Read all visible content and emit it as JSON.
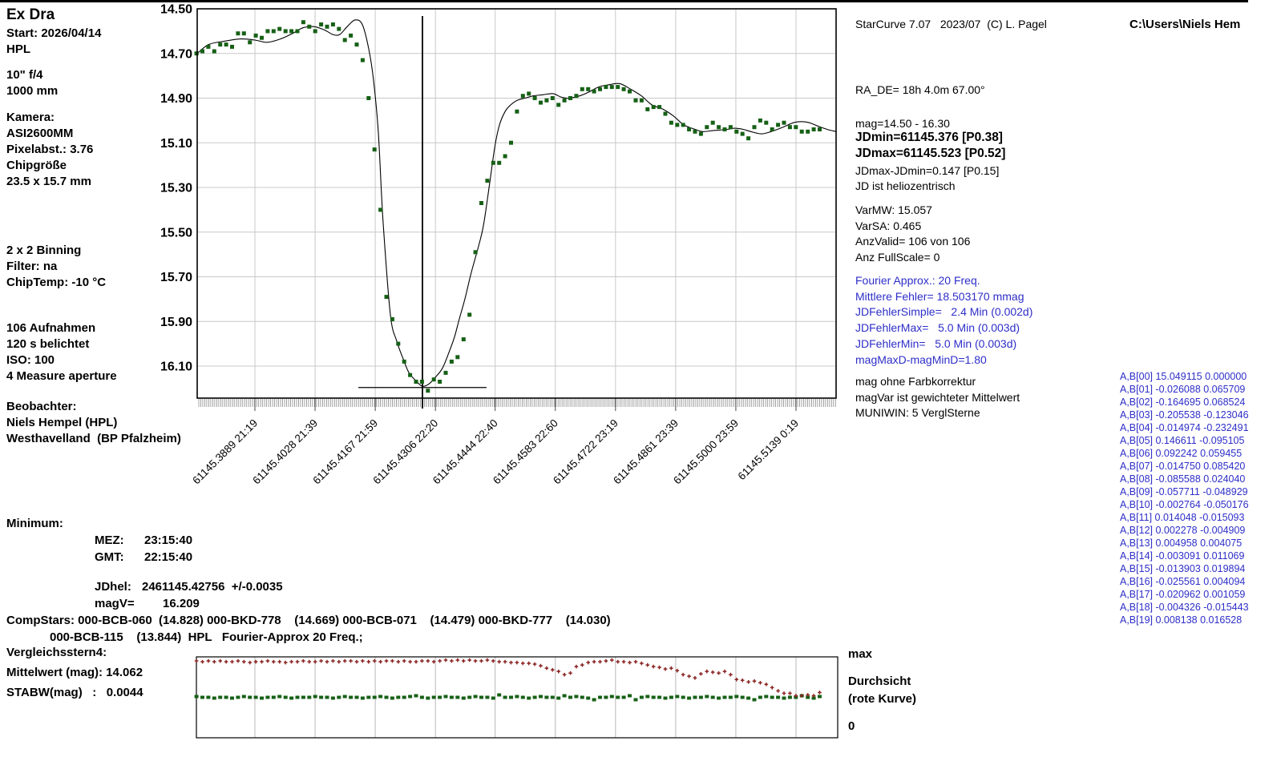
{
  "header": {
    "top_right_path": "C:\\Users\\Niels Hem"
  },
  "software": {
    "credit": "StarCurve 7.07   2023/07  (C) L. Pagel"
  },
  "info_panel": {
    "title": "Ex Dra",
    "start": "Start: 2026/04/14",
    "observer_code": "HPL",
    "scope": "10\" f/4",
    "focal": "1000 mm",
    "camera_label": "Kamera:",
    "camera": "ASI2600MM",
    "pixel": "Pixelabst.: 3.76",
    "chip_label": "Chipgröße",
    "chip_size": "23.5 x 15.7 mm",
    "binning": "2 x 2 Binning",
    "filter": "Filter: na",
    "chiptemp": "ChipTemp: -10 °C",
    "frames": "106 Aufnahmen",
    "exposure": "120 s belichtet",
    "iso": "ISO: 100",
    "aperture": "4 Measure aperture",
    "observer_label": "Beobachter:",
    "observer": "Niels Hempel (HPL)",
    "site": "Westhavelland  (BP Pfalzheim)"
  },
  "results": {
    "ra_de": "RA_DE= 18h 4.0m 67.00°",
    "mag_range": "mag=14.50 - 16.30",
    "jdmin": "JDmin=61145.376 [P0.38]",
    "jdmax": "JDmax=61145.523 [P0.52]",
    "jd_diff": "JDmax-JDmin=0.147 [P0.15]",
    "helio": "JD ist heliozentrisch",
    "var_lines": [
      "VarMW: 15.057",
      "VarSA: 0.465",
      "AnzValid= 106 von 106",
      "Anz FullScale= 0"
    ]
  },
  "fourier": {
    "lines": [
      "Fourier Approx.: 20 Freq.",
      "Mittlere Fehler= 18.503170 mmag",
      "JDFehlerSimple=   2.4 Min (0.002d)",
      "JDFehlerMax=   5.0 Min (0.003d)",
      "JDFehlerMin=   5.0 Min (0.003d)",
      "magMaxD-magMinD=1.80"
    ]
  },
  "notes": {
    "lines": [
      "mag ohne Farbkorrektur",
      "magVar ist gewichteter Mittelwert",
      "MUNIWIN: 5 VerglSterne"
    ]
  },
  "coefficients": [
    "A,B[00] 15.049115 0.000000",
    "A,B[01] -0.026088 0.065709",
    "A,B[02] -0.164695 0.068524",
    "A,B[03] -0.205538 -0.123046",
    "A,B[04] -0.014974 -0.232491",
    "A,B[05] 0.146611 -0.095105",
    "A,B[06] 0.092242 0.059455",
    "A,B[07] -0.014750 0.085420",
    "A,B[08] -0.085588 0.024040",
    "A,B[09] -0.057711 -0.048929",
    "A,B[10] -0.002764 -0.050176",
    "A,B[11] 0.014048 -0.015093",
    "A,B[12] 0.002278 -0.004909",
    "A,B[13] 0.004958 0.004075",
    "A,B[14] -0.003091 0.011069",
    "A,B[15] -0.013903 0.019894",
    "A,B[16] -0.025561 0.004094",
    "A,B[17] -0.020962 0.001059",
    "A,B[18] -0.004326 -0.015443",
    "A,B[19] 0.008138 0.016528"
  ],
  "minimum": {
    "label": "Minimum:",
    "mez_label": "MEZ:",
    "mez": "23:15:40",
    "gmt_label": "GMT:",
    "gmt": "22:15:40",
    "jdhel_label": "JDhel:",
    "jdhel": "2461145.42756  +/-0.0035",
    "magv_label": "magV=",
    "magv": "16.209",
    "compstars_line1": "CompStars: 000-BCB-060  (14.828) 000-BKD-778    (14.669) 000-BCB-071    (14.479) 000-BKD-777    (14.030)",
    "compstars_line2": "000-BCB-115    (13.844)  HPL   Fourier-Approx 20 Freq.;"
  },
  "comparison": {
    "title": "Vergleichsstern4:",
    "mean": "Mittelwert (mag): 14.062",
    "stdev": "STABW(mag)   :   0.0044"
  },
  "strip_labels": {
    "max": "max",
    "durchsicht": "Durchsicht",
    "rote_kurve": "(rote Kurve)",
    "zero": "0"
  },
  "colors": {
    "data_green": "#166016",
    "data_red": "#8b2424",
    "accent_blue": "#2e2ec8",
    "grid": "#c8c8c8",
    "strip_grid": "#b8b8b8"
  },
  "chart_data": [
    {
      "type": "scatter",
      "name": "Ex Dra light curve",
      "ylabel": "mag",
      "y_ticks": [
        "14.50",
        "14.70",
        "14.90",
        "15.10",
        "15.30",
        "15.50",
        "15.70",
        "15.90",
        "16.10"
      ],
      "ylim": [
        14.5,
        16.24
      ],
      "xlim_jd": [
        61145.3756,
        61145.5232
      ],
      "grid": true,
      "x_ticks": [
        {
          "jd": 61145.3889,
          "label": "61145.3889",
          "time": "21:19"
        },
        {
          "jd": 61145.4028,
          "label": "61145.4028",
          "time": "21:39"
        },
        {
          "jd": 61145.4167,
          "label": "61145.4167",
          "time": "21:59"
        },
        {
          "jd": 61145.4306,
          "label": "61145.4306",
          "time": "22:20"
        },
        {
          "jd": 61145.4444,
          "label": "61145.4444",
          "time": "22:40"
        },
        {
          "jd": 61145.4583,
          "label": "61145.4583",
          "time": "22:60"
        },
        {
          "jd": 61145.4722,
          "label": "61145.4722",
          "time": "23:19"
        },
        {
          "jd": 61145.4861,
          "label": "61145.4861",
          "time": "23:39"
        },
        {
          "jd": 61145.5,
          "label": "61145.5000",
          "time": "23:59"
        },
        {
          "jd": 61145.5139,
          "label": "61145.5139",
          "time": "0:19"
        }
      ],
      "points": {
        "jd_start": 61145.3754,
        "jd_step": 0.001371,
        "mags": [
          14.7,
          14.69,
          14.67,
          14.69,
          14.66,
          14.66,
          14.67,
          14.61,
          14.61,
          14.65,
          14.62,
          14.63,
          14.6,
          14.6,
          14.59,
          14.6,
          14.6,
          14.6,
          14.56,
          14.58,
          14.6,
          14.57,
          14.58,
          14.57,
          14.59,
          14.64,
          14.62,
          14.66,
          14.73,
          14.9,
          15.13,
          15.4,
          15.79,
          15.89,
          16.0,
          16.08,
          16.14,
          16.17,
          16.17,
          16.21,
          16.16,
          16.17,
          16.13,
          16.08,
          16.06,
          15.98,
          15.87,
          15.59,
          15.37,
          15.27,
          15.19,
          15.19,
          15.16,
          15.1,
          14.96,
          14.89,
          14.88,
          14.9,
          14.92,
          14.91,
          14.9,
          14.93,
          14.91,
          14.9,
          14.89,
          14.86,
          14.86,
          14.87,
          14.86,
          14.85,
          14.85,
          14.85,
          14.86,
          14.87,
          14.91,
          14.91,
          14.95,
          14.94,
          14.94,
          14.97,
          15.01,
          15.02,
          15.02,
          15.04,
          15.05,
          15.06,
          15.03,
          15.01,
          15.03,
          15.04,
          15.03,
          15.05,
          15.06,
          15.08,
          15.03,
          15.0,
          15.01,
          15.04,
          15.02,
          15.01,
          15.03,
          15.03,
          15.05,
          15.05,
          15.04,
          15.04
        ]
      },
      "fit": {
        "name": "Fourier-Approx 20 Freq.",
        "points": [
          [
            61145.3756,
            14.7
          ],
          [
            61145.3782,
            14.66
          ],
          [
            61145.3819,
            14.645
          ],
          [
            61145.3856,
            14.635
          ],
          [
            61145.3889,
            14.64
          ],
          [
            61145.3917,
            14.65
          ],
          [
            61145.3948,
            14.635
          ],
          [
            61145.3976,
            14.61
          ],
          [
            61145.4,
            14.585
          ],
          [
            61145.4026,
            14.58
          ],
          [
            61145.405,
            14.595
          ],
          [
            61145.4069,
            14.615
          ],
          [
            61145.4085,
            14.615
          ],
          [
            61145.4102,
            14.58
          ],
          [
            61145.412,
            14.55
          ],
          [
            61145.4137,
            14.57
          ],
          [
            61145.4152,
            14.68
          ],
          [
            61145.4163,
            14.82
          ],
          [
            61145.4174,
            15.05
          ],
          [
            61145.4185,
            15.45
          ],
          [
            61145.4202,
            15.87
          ],
          [
            61145.4217,
            15.99
          ],
          [
            61145.4232,
            16.07
          ],
          [
            61145.4245,
            16.13
          ],
          [
            61145.4263,
            16.17
          ],
          [
            61145.4276,
            16.19
          ],
          [
            61145.4291,
            16.18
          ],
          [
            61145.4306,
            16.15
          ],
          [
            61145.4322,
            16.11
          ],
          [
            61145.4337,
            16.04
          ],
          [
            61145.435,
            15.97
          ],
          [
            61145.4361,
            15.89
          ],
          [
            61145.4374,
            15.8
          ],
          [
            61145.4389,
            15.68
          ],
          [
            61145.4406,
            15.56
          ],
          [
            61145.4417,
            15.47
          ],
          [
            61145.443,
            15.3
          ],
          [
            61145.4443,
            15.12
          ],
          [
            61145.4454,
            15.02
          ],
          [
            61145.4467,
            14.96
          ],
          [
            61145.448,
            14.93
          ],
          [
            61145.4495,
            14.91
          ],
          [
            61145.4513,
            14.9
          ],
          [
            61145.4532,
            14.89
          ],
          [
            61145.4554,
            14.885
          ],
          [
            61145.4578,
            14.88
          ],
          [
            61145.4596,
            14.895
          ],
          [
            61145.4615,
            14.9
          ],
          [
            61145.4639,
            14.89
          ],
          [
            61145.4658,
            14.875
          ],
          [
            61145.4683,
            14.85
          ],
          [
            61145.4707,
            14.84
          ],
          [
            61145.4732,
            14.835
          ],
          [
            61145.4757,
            14.86
          ],
          [
            61145.4782,
            14.89
          ],
          [
            61145.4806,
            14.93
          ],
          [
            61145.4832,
            14.95
          ],
          [
            61145.4856,
            14.98
          ],
          [
            61145.488,
            15.02
          ],
          [
            61145.4906,
            15.04
          ],
          [
            61145.4924,
            15.05
          ],
          [
            61145.4948,
            15.045
          ],
          [
            61145.498,
            15.04
          ],
          [
            61145.4998,
            15.035
          ],
          [
            61145.5017,
            15.04
          ],
          [
            61145.5035,
            15.05
          ],
          [
            61145.5059,
            15.06
          ],
          [
            61145.5081,
            15.05
          ],
          [
            61145.5109,
            15.03
          ],
          [
            61145.5133,
            15.01
          ],
          [
            61145.5152,
            15.005
          ],
          [
            61145.517,
            15.01
          ],
          [
            61145.5189,
            15.025
          ],
          [
            61145.5211,
            15.04
          ],
          [
            61145.5232,
            15.05
          ]
        ]
      },
      "minimum_marker": {
        "jd": 61145.4276,
        "hline_mag": 16.196,
        "hline_from_jd": 61145.4128,
        "hline_to_jd": 61145.4424
      }
    },
    {
      "type": "scatter",
      "name": "Durchsicht / Vergleichsstern4",
      "ylim_labels": [
        "0",
        "max"
      ],
      "red_series_name": "Durchsicht (rote Kurve)",
      "green_series_name": "Vergleichsstern4",
      "red_frac": [
        0.95,
        0.94,
        0.95,
        0.94,
        0.95,
        0.94,
        0.94,
        0.95,
        0.94,
        0.93,
        0.94,
        0.94,
        0.95,
        0.94,
        0.94,
        0.93,
        0.94,
        0.94,
        0.95,
        0.94,
        0.94,
        0.95,
        0.94,
        0.95,
        0.94,
        0.95,
        0.95,
        0.94,
        0.95,
        0.94,
        0.95,
        0.94,
        0.95,
        0.95,
        0.94,
        0.95,
        0.94,
        0.94,
        0.95,
        0.95,
        0.94,
        0.95,
        0.96,
        0.95,
        0.96,
        0.95,
        0.96,
        0.95,
        0.95,
        0.96,
        0.95,
        0.94,
        0.94,
        0.93,
        0.93,
        0.92,
        0.92,
        0.91,
        0.89,
        0.86,
        0.84,
        0.82,
        0.78,
        0.8,
        0.88,
        0.9,
        0.93,
        0.94,
        0.94,
        0.95,
        0.96,
        0.94,
        0.94,
        0.93,
        0.94,
        0.92,
        0.9,
        0.88,
        0.87,
        0.85,
        0.86,
        0.83,
        0.78,
        0.76,
        0.74,
        0.79,
        0.82,
        0.81,
        0.8,
        0.82,
        0.78,
        0.72,
        0.71,
        0.69,
        0.7,
        0.68,
        0.66,
        0.62,
        0.58,
        0.55,
        0.55,
        0.52,
        0.52,
        0.53,
        0.52,
        0.56
      ],
      "green_frac": [
        0.51,
        0.5,
        0.5,
        0.49,
        0.5,
        0.5,
        0.49,
        0.5,
        0.51,
        0.5,
        0.5,
        0.49,
        0.5,
        0.5,
        0.51,
        0.5,
        0.49,
        0.5,
        0.5,
        0.5,
        0.51,
        0.5,
        0.5,
        0.49,
        0.5,
        0.51,
        0.5,
        0.5,
        0.49,
        0.5,
        0.5,
        0.51,
        0.5,
        0.49,
        0.5,
        0.5,
        0.51,
        0.52,
        0.5,
        0.49,
        0.5,
        0.5,
        0.51,
        0.5,
        0.5,
        0.49,
        0.5,
        0.51,
        0.5,
        0.5,
        0.49,
        0.53,
        0.5,
        0.5,
        0.51,
        0.5,
        0.49,
        0.5,
        0.51,
        0.5,
        0.5,
        0.49,
        0.52,
        0.5,
        0.51,
        0.5,
        0.49,
        0.47,
        0.5,
        0.5,
        0.51,
        0.5,
        0.5,
        0.52,
        0.47,
        0.5,
        0.51,
        0.5,
        0.5,
        0.49,
        0.5,
        0.51,
        0.5,
        0.49,
        0.5,
        0.5,
        0.51,
        0.5,
        0.49,
        0.5,
        0.5,
        0.51,
        0.5,
        0.49,
        0.47,
        0.5,
        0.51,
        0.5,
        0.5,
        0.49,
        0.5,
        0.5,
        0.52,
        0.5,
        0.49,
        0.51
      ]
    }
  ]
}
